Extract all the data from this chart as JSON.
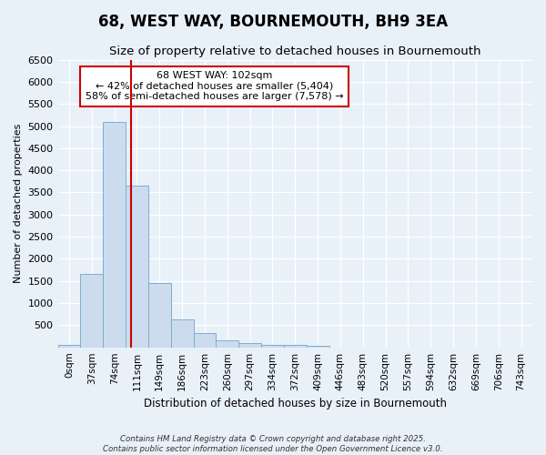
{
  "title": "68, WEST WAY, BOURNEMOUTH, BH9 3EA",
  "subtitle": "Size of property relative to detached houses in Bournemouth",
  "xlabel": "Distribution of detached houses by size in Bournemouth",
  "ylabel": "Number of detached properties",
  "bar_labels": [
    "0sqm",
    "37sqm",
    "74sqm",
    "111sqm",
    "149sqm",
    "186sqm",
    "223sqm",
    "260sqm",
    "297sqm",
    "334sqm",
    "372sqm",
    "409sqm",
    "446sqm",
    "483sqm",
    "520sqm",
    "557sqm",
    "594sqm",
    "632sqm",
    "669sqm",
    "706sqm",
    "743sqm"
  ],
  "bar_values": [
    50,
    1650,
    5100,
    3650,
    1450,
    625,
    325,
    150,
    100,
    50,
    50,
    30,
    0,
    0,
    0,
    0,
    0,
    0,
    0,
    0,
    0
  ],
  "bar_color": "#ccdcee",
  "bar_edge_color": "#7bafd4",
  "ylim": [
    0,
    6500
  ],
  "yticks": [
    0,
    500,
    1000,
    1500,
    2000,
    2500,
    3000,
    3500,
    4000,
    4500,
    5000,
    5500,
    6000,
    6500
  ],
  "property_size_label": "68 WEST WAY: 102sqm",
  "annotation_line1": "← 42% of detached houses are smaller (5,404)",
  "annotation_line2": "58% of semi-detached houses are larger (7,578) →",
  "vline_x_index": 2.757,
  "vline_color": "#cc0000",
  "annotation_box_edgecolor": "#cc0000",
  "plot_bg_color": "#e8f0f8",
  "fig_bg_color": "#e8f0f8",
  "footer_line1": "Contains HM Land Registry data © Crown copyright and database right 2025.",
  "footer_line2": "Contains public sector information licensed under the Open Government Licence v3.0.",
  "title_fontsize": 12,
  "subtitle_fontsize": 9.5,
  "ylabel_fontsize": 8,
  "xlabel_fontsize": 8.5
}
